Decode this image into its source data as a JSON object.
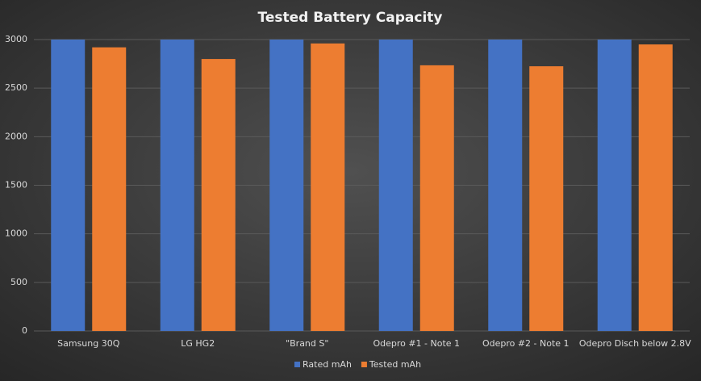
{
  "chart_data": {
    "type": "bar",
    "title": "Tested Battery Capacity",
    "categories": [
      "Samsung 30Q",
      "LG HG2",
      "\"Brand S\"",
      "Odepro #1 - Note 1",
      "Odepro #2 - Note 1",
      "Odepro Disch below 2.8V"
    ],
    "series": [
      {
        "name": "Rated mAh",
        "color": "#4472c4",
        "values": [
          3000,
          3000,
          3000,
          3000,
          3000,
          3000
        ]
      },
      {
        "name": "Tested mAh",
        "color": "#ed7d31",
        "values": [
          2920,
          2800,
          2960,
          2735,
          2725,
          2950
        ]
      }
    ],
    "ylim": [
      0,
      3000
    ],
    "yticks": [
      0,
      500,
      1000,
      1500,
      2000,
      2500,
      3000
    ],
    "grid": true,
    "legend": "bottom"
  }
}
